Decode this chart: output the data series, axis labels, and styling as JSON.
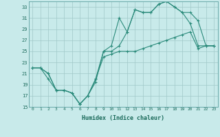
{
  "title": "",
  "xlabel": "Humidex (Indice chaleur)",
  "ylabel": "",
  "bg_color": "#c8eaea",
  "line_color": "#2a8a7a",
  "grid_color": "#a0c8c8",
  "ylim": [
    15,
    34
  ],
  "xlim": [
    -0.5,
    23.5
  ],
  "yticks": [
    15,
    17,
    19,
    21,
    23,
    25,
    27,
    29,
    31,
    33
  ],
  "xticks": [
    0,
    1,
    2,
    3,
    4,
    5,
    6,
    7,
    8,
    9,
    10,
    11,
    12,
    13,
    14,
    15,
    16,
    17,
    18,
    19,
    20,
    21,
    22,
    23
  ],
  "line1_x": [
    0,
    1,
    2,
    3,
    4,
    5,
    6,
    7,
    8,
    9,
    10,
    11,
    12,
    13,
    14,
    15,
    16,
    17,
    18,
    19,
    20,
    21,
    22,
    23
  ],
  "line1_y": [
    22,
    22,
    21,
    18,
    18,
    17.5,
    15.5,
    17,
    20,
    25,
    26,
    31,
    28.5,
    32.5,
    32,
    32,
    33.5,
    34,
    33,
    32,
    30,
    26,
    26,
    26
  ],
  "line2_x": [
    0,
    1,
    2,
    3,
    4,
    5,
    6,
    7,
    8,
    9,
    10,
    11,
    12,
    13,
    14,
    15,
    16,
    17,
    18,
    19,
    20,
    21,
    22,
    23
  ],
  "line2_y": [
    22,
    22,
    21,
    18,
    18,
    17.5,
    15.5,
    17,
    19.5,
    25,
    25,
    26,
    28.5,
    32.5,
    32,
    32,
    33.5,
    34,
    33,
    32,
    32,
    30.5,
    26,
    26
  ],
  "line3_x": [
    0,
    1,
    2,
    3,
    4,
    5,
    6,
    7,
    8,
    9,
    10,
    11,
    12,
    13,
    14,
    15,
    16,
    17,
    18,
    19,
    20,
    21,
    22,
    23
  ],
  "line3_y": [
    22,
    22,
    20,
    18,
    18,
    17.5,
    15.5,
    17,
    20,
    24,
    24.5,
    25,
    25,
    25,
    25.5,
    26,
    26.5,
    27,
    27.5,
    28,
    28.5,
    25.5,
    26,
    26
  ]
}
